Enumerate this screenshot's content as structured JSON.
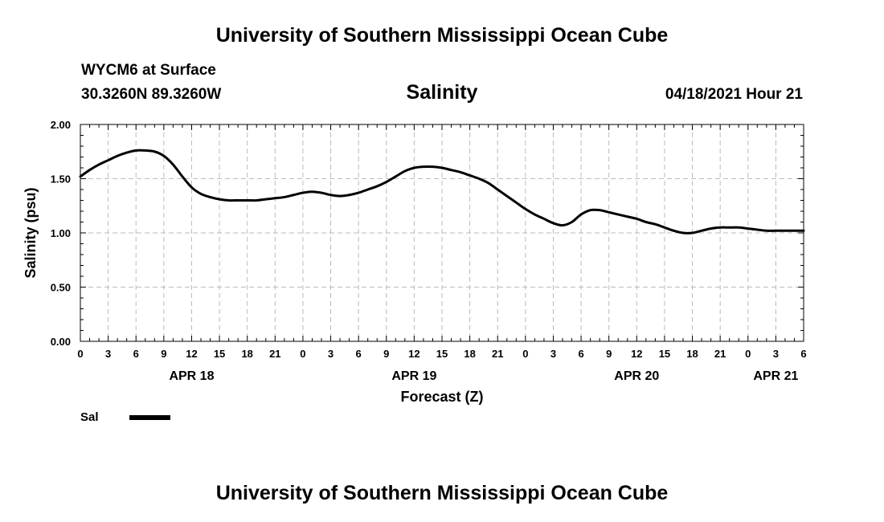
{
  "page": {
    "top_title": "University of Southern Mississippi Ocean Cube",
    "bottom_title": "University of Southern Mississippi Ocean Cube",
    "station": "WYCM6 at Surface",
    "coordinates": "30.3260N  89.3260W",
    "datetime": "04/18/2021 Hour 21"
  },
  "chart_data": {
    "type": "line",
    "title": "Salinity",
    "xlabel": "Forecast (Z)",
    "ylabel": "Salinity (psu)",
    "ylim": [
      0,
      2
    ],
    "y_ticks": [
      "0.00",
      "0.50",
      "1.00",
      "1.50",
      "2.00"
    ],
    "y_tick_values": [
      0,
      0.5,
      1.0,
      1.5,
      2.0
    ],
    "x_range_hours": [
      0,
      78
    ],
    "x_tick_labels": [
      "0",
      "3",
      "6",
      "9",
      "12",
      "15",
      "18",
      "21",
      "0",
      "3",
      "6",
      "9",
      "12",
      "15",
      "18",
      "21",
      "0",
      "3",
      "6",
      "9",
      "12",
      "15",
      "18",
      "21",
      "0",
      "3",
      "6"
    ],
    "date_labels": [
      {
        "label": "APR 18",
        "hour": 12
      },
      {
        "label": "APR 19",
        "hour": 36
      },
      {
        "label": "APR 20",
        "hour": 60
      },
      {
        "label": "APR 21",
        "hour": 75
      }
    ],
    "grid": true,
    "series": [
      {
        "name": "Sal",
        "x": [
          0,
          1,
          2,
          3,
          4,
          5,
          6,
          7,
          8,
          9,
          10,
          11,
          12,
          13,
          14,
          15,
          16,
          17,
          18,
          19,
          20,
          21,
          22,
          23,
          24,
          25,
          26,
          27,
          28,
          29,
          30,
          31,
          32,
          33,
          34,
          35,
          36,
          37,
          38,
          39,
          40,
          41,
          42,
          43,
          44,
          45,
          46,
          47,
          48,
          49,
          50,
          51,
          52,
          53,
          54,
          55,
          56,
          57,
          58,
          59,
          60,
          61,
          62,
          63,
          64,
          65,
          66,
          67,
          68,
          69,
          70,
          71,
          72,
          73,
          74,
          75,
          76,
          77,
          78
        ],
        "values": [
          1.52,
          1.58,
          1.63,
          1.67,
          1.71,
          1.74,
          1.76,
          1.76,
          1.75,
          1.71,
          1.63,
          1.52,
          1.42,
          1.36,
          1.33,
          1.31,
          1.3,
          1.3,
          1.3,
          1.3,
          1.31,
          1.32,
          1.33,
          1.35,
          1.37,
          1.38,
          1.37,
          1.35,
          1.34,
          1.35,
          1.37,
          1.4,
          1.43,
          1.47,
          1.52,
          1.57,
          1.6,
          1.61,
          1.61,
          1.6,
          1.58,
          1.56,
          1.53,
          1.5,
          1.46,
          1.4,
          1.34,
          1.28,
          1.22,
          1.17,
          1.13,
          1.09,
          1.07,
          1.1,
          1.17,
          1.21,
          1.21,
          1.19,
          1.17,
          1.15,
          1.13,
          1.1,
          1.08,
          1.05,
          1.02,
          1.0,
          1.0,
          1.02,
          1.04,
          1.05,
          1.05,
          1.05,
          1.04,
          1.03,
          1.02,
          1.02,
          1.02,
          1.02,
          1.02
        ]
      }
    ],
    "legend": [
      {
        "label": "Sal",
        "color": "#000000"
      }
    ]
  }
}
